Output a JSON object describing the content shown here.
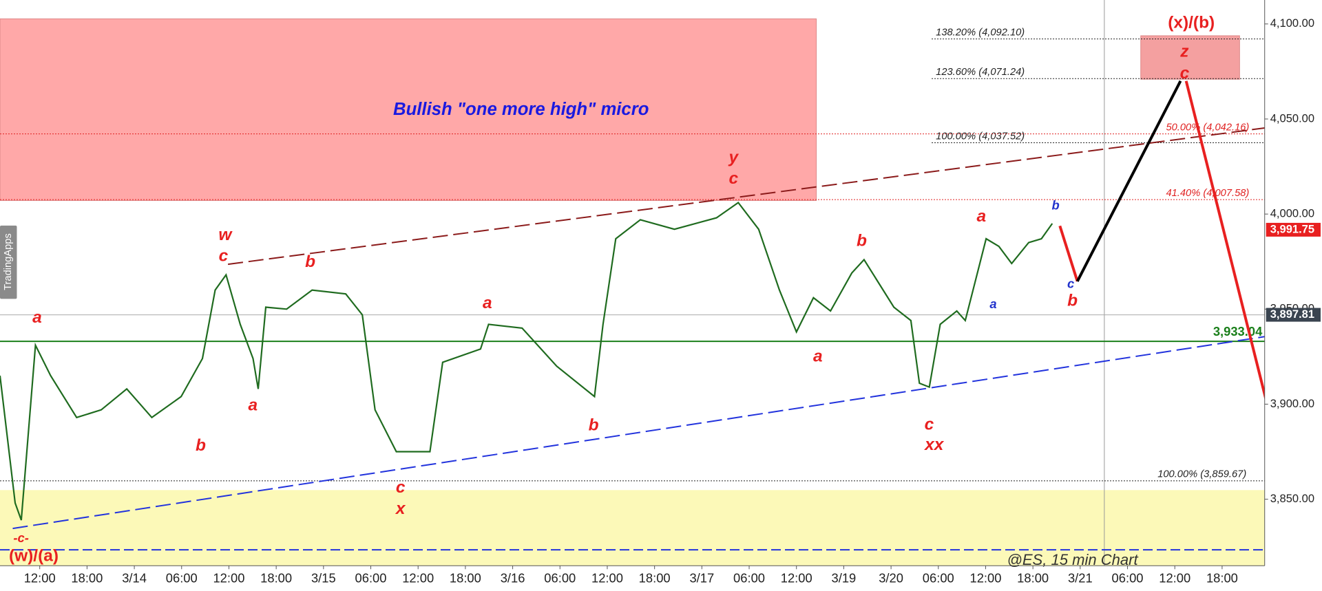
{
  "chart_data": {
    "type": "line",
    "title": "Bullish \"one more high\" micro",
    "watermark": "@ES, 15 min Chart",
    "side_tab": "TradingApps",
    "x": [
      -0.84,
      -0.52,
      -0.39,
      -0.09,
      0.23,
      0.78,
      1.3,
      1.84,
      2.37,
      2.99,
      3.44,
      3.71,
      3.94,
      4.24,
      4.51,
      4.62,
      4.78,
      5.22,
      5.76,
      6.47,
      6.82,
      7.09,
      7.54,
      8.25,
      8.52,
      9.32,
      9.49,
      10.2,
      10.93,
      11.73,
      11.91,
      12.18,
      12.7,
      13.42,
      14.31,
      14.77,
      15.2,
      15.64,
      16.0,
      16.36,
      16.72,
      17.17,
      17.43,
      18.06,
      18.42,
      18.6,
      18.81,
      19.04,
      19.39,
      19.57,
      20.01,
      20.28,
      20.55,
      20.91,
      21.18,
      21.41
    ],
    "series": [
      {
        "color": "#1f6b1f",
        "values": [
          3915,
          3848,
          3839,
          3931,
          3915,
          3893,
          3897,
          3908,
          3893,
          3904,
          3924,
          3960,
          3968,
          3942,
          3924,
          3908,
          3951,
          3950,
          3960,
          3958,
          3947,
          3897,
          3875,
          3875,
          3922,
          3929,
          3942,
          3940,
          3920,
          3904,
          3942,
          3987,
          3997,
          3992,
          3998,
          4006,
          3992,
          3960,
          3938,
          3956,
          3949,
          3969,
          3976,
          3951,
          3944,
          3911,
          3909,
          3942,
          3949,
          3944,
          3987,
          3983,
          3974,
          3985,
          3987,
          3995
        ]
      }
    ],
    "xlim": [
      -0.84,
      25.9
    ],
    "xticks": [
      {
        "value": 0,
        "label": "12:00"
      },
      {
        "value": 1,
        "label": "18:00"
      },
      {
        "value": 2,
        "label": "3/14"
      },
      {
        "value": 3,
        "label": "06:00"
      },
      {
        "value": 4,
        "label": "12:00"
      },
      {
        "value": 5,
        "label": "18:00"
      },
      {
        "value": 6,
        "label": "3/15"
      },
      {
        "value": 7,
        "label": "06:00"
      },
      {
        "value": 8,
        "label": "12:00"
      },
      {
        "value": 9,
        "label": "18:00"
      },
      {
        "value": 10,
        "label": "3/16"
      },
      {
        "value": 11,
        "label": "06:00"
      },
      {
        "value": 12,
        "label": "12:00"
      },
      {
        "value": 13,
        "label": "18:00"
      },
      {
        "value": 14,
        "label": "3/17"
      },
      {
        "value": 15,
        "label": "06:00"
      },
      {
        "value": 16,
        "label": "12:00"
      },
      {
        "value": 17,
        "label": "3/19"
      },
      {
        "value": 18,
        "label": "3/20"
      },
      {
        "value": 19,
        "label": "06:00"
      },
      {
        "value": 20,
        "label": "12:00"
      },
      {
        "value": 21,
        "label": "18:00"
      },
      {
        "value": 22,
        "label": "3/21"
      },
      {
        "value": 23,
        "label": "06:00"
      },
      {
        "value": 24,
        "label": "12:00"
      },
      {
        "value": 25,
        "label": "18:00"
      }
    ],
    "ylim": [
      3815,
      4112.6
    ],
    "yticks": [
      {
        "value": 3850,
        "label": "3,850.00"
      },
      {
        "value": 3900,
        "label": "3,900.00"
      },
      {
        "value": 3950,
        "label": "3,950.00"
      },
      {
        "value": 4000,
        "label": "4,000.00"
      },
      {
        "value": 4050,
        "label": "4,050.00"
      },
      {
        "value": 4100,
        "label": "4,100.00"
      }
    ],
    "zones": [
      {
        "color": "#ffa8a8",
        "x": [
          -0.84,
          16.42
        ],
        "y": [
          4007.1,
          4102.7
        ]
      },
      {
        "color": "#f4a0a0",
        "x": [
          23.28,
          25.37
        ],
        "y": [
          4070.9,
          4093.8
        ]
      },
      {
        "color": "#fcf9b8",
        "x": [
          -0.84,
          25.9
        ],
        "y": [
          3815,
          3854.8
        ]
      }
    ],
    "levels": [
      {
        "value": 4092.1,
        "label": "138.20% (4,092.10)",
        "color": "#222222"
      },
      {
        "value": 4071.24,
        "label": "123.60% (4,071.24)",
        "color": "#222222"
      },
      {
        "value": 4037.52,
        "label": "100.00% (4,037.52)",
        "color": "#222222"
      },
      {
        "value": 3859.67,
        "label": "100.00% (3,859.67)",
        "color": "#222222"
      },
      {
        "value": 4042.16,
        "label": "50.00% (4,042.16)",
        "color": "#e02020"
      },
      {
        "value": 4007.58,
        "label": "41.40% (4,007.58)",
        "color": "#e02020"
      }
    ],
    "hlines": [
      {
        "value": 3933.04,
        "label": "3,933.04",
        "color": "#1a7f1a"
      },
      {
        "value": 3823.4,
        "color": "#2233dd",
        "dash": true
      },
      {
        "value": 3947,
        "color": "#aaaaaa"
      }
    ],
    "tag": {
      "text": "3,897.81",
      "color": "#3a4450"
    },
    "last_price": {
      "value": 3991.75,
      "label": "3,991.75",
      "color": "#e82020"
    },
    "vline": 22.51,
    "overlays": [
      {
        "color": "#8b1a1a",
        "dash": true,
        "x": [
          3.98,
          25.9
        ],
        "y": [
          3973.6,
          4045.3
        ]
      },
      {
        "color": "#2233dd",
        "dash": true,
        "x": [
          -0.57,
          25.9
        ],
        "y": [
          3834.6,
          3935.5
        ]
      },
      {
        "color": "#e82020",
        "dash": false,
        "x": [
          21.57,
          21.94
        ],
        "y": [
          3993.8,
          3964.6
        ]
      },
      {
        "color": "#000000",
        "dash": false,
        "x": [
          21.94,
          24.12
        ],
        "y": [
          3964.6,
          4070.0
        ]
      },
      {
        "color": "#e82020",
        "dash": false,
        "x": [
          24.24,
          26.52
        ],
        "y": [
          4070.0,
          3843.6
        ]
      }
    ]
  },
  "wave_labels": [
    {
      "text": "a",
      "color": "#e82020"
    },
    {
      "text": "-c-",
      "color": "#e82020"
    },
    {
      "text": "(w)/(a)",
      "color": "#e82020"
    },
    {
      "text": "b",
      "color": "#e82020"
    },
    {
      "text": "w",
      "color": "#e82020"
    },
    {
      "text": "c",
      "color": "#e82020"
    },
    {
      "text": "a",
      "color": "#e82020"
    },
    {
      "text": "b",
      "color": "#e82020"
    },
    {
      "text": "c",
      "color": "#e82020"
    },
    {
      "text": "x",
      "color": "#e82020"
    },
    {
      "text": "a",
      "color": "#e82020"
    },
    {
      "text": "b",
      "color": "#e82020"
    },
    {
      "text": "y",
      "color": "#e82020"
    },
    {
      "text": "c",
      "color": "#e82020"
    },
    {
      "text": "a",
      "color": "#e82020"
    },
    {
      "text": "b",
      "color": "#e82020"
    },
    {
      "text": "c",
      "color": "#e82020"
    },
    {
      "text": "xx",
      "color": "#e82020"
    },
    {
      "text": "a",
      "color": "#e82020"
    },
    {
      "text": "a",
      "color": "#2233cc"
    },
    {
      "text": "b",
      "color": "#2233cc"
    },
    {
      "text": "c",
      "color": "#2233cc"
    },
    {
      "text": "b",
      "color": "#e82020"
    },
    {
      "text": "z",
      "color": "#e82020"
    },
    {
      "text": "c",
      "color": "#e82020"
    },
    {
      "text": "(x)/(b)",
      "color": "#e82020"
    }
  ]
}
